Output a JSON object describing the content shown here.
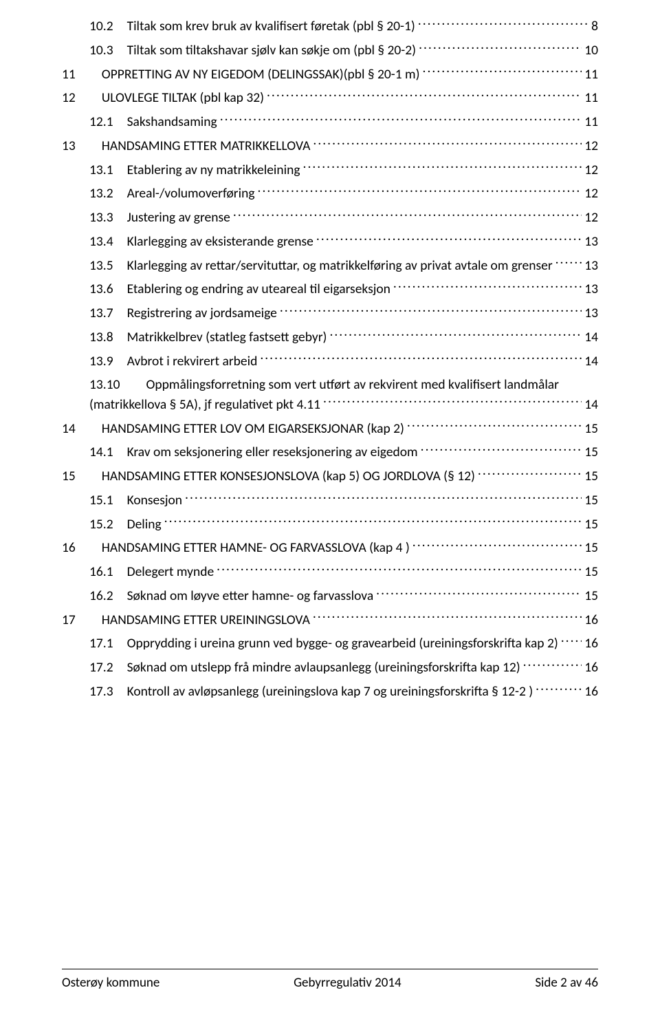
{
  "colors": {
    "text": "#000000",
    "background": "#ffffff",
    "footer_border": "#000000"
  },
  "typography": {
    "body_fontsize_pt": 11,
    "footer_fontsize_pt": 11,
    "font_family": "Calibri"
  },
  "toc": {
    "entries": [
      {
        "num": "10.2",
        "title": "Tiltak som krev bruk av kvalifisert føretak (pbl § 20-1)",
        "page": "8",
        "indent": 1,
        "gap": "narrow"
      },
      {
        "num": "10.3",
        "title": "Tiltak som tiltakshavar sjølv kan søkje om (pbl § 20-2)",
        "page": "10",
        "indent": 1,
        "gap": "narrow"
      },
      {
        "num": "11",
        "title": "OPPRETTING AV NY EIGEDOM (DELINGSSAK)(pbl § 20-1 m)",
        "page": "11",
        "indent": 0,
        "gap": "wide"
      },
      {
        "num": "12",
        "title": "ULOVLEGE TILTAK (pbl kap 32)",
        "page": "11",
        "indent": 0,
        "gap": "wide"
      },
      {
        "num": "12.1",
        "title": "Sakshandsaming",
        "page": "11",
        "indent": 1,
        "gap": "narrow"
      },
      {
        "num": "13",
        "title": "HANDSAMING ETTER MATRIKKELLOVA",
        "page": "12",
        "indent": 0,
        "gap": "wide"
      },
      {
        "num": "13.1",
        "title": "Etablering av ny matrikkeleining",
        "page": "12",
        "indent": 1,
        "gap": "narrow"
      },
      {
        "num": "13.2",
        "title": "Areal-/volumoverføring",
        "page": "12",
        "indent": 1,
        "gap": "narrow"
      },
      {
        "num": "13.3",
        "title": "Justering av grense",
        "page": "12",
        "indent": 1,
        "gap": "narrow"
      },
      {
        "num": "13.4",
        "title": "Klarlegging av eksisterande grense",
        "page": "13",
        "indent": 1,
        "gap": "narrow"
      },
      {
        "num": "13.5",
        "title": "Klarlegging av rettar/servituttar, og matrikkelføring av privat avtale om grenser",
        "page": "13",
        "indent": 1,
        "gap": "narrow"
      },
      {
        "num": "13.6",
        "title": "Etablering og endring av uteareal til eigarseksjon",
        "page": "13",
        "indent": 1,
        "gap": "narrow"
      },
      {
        "num": "13.7",
        "title": "Registrering av jordsameige",
        "page": "13",
        "indent": 1,
        "gap": "narrow"
      },
      {
        "num": "13.8",
        "title": "Matrikkelbrev (statleg fastsett gebyr)",
        "page": "14",
        "indent": 1,
        "gap": "narrow"
      },
      {
        "num": "13.9",
        "title": "Avbrot i rekvirert arbeid",
        "page": "14",
        "indent": 1,
        "gap": "narrow"
      }
    ],
    "multiline_entry": {
      "num": "13.10",
      "line1": "Oppmålingsforretning som vert utført av rekvirent med kvalifisert landmålar",
      "line2": "(matrikkellova § 5A), jf regulativet pkt 4.11",
      "page": "14"
    },
    "entries_after": [
      {
        "num": "14",
        "title": "HANDSAMING ETTER LOV OM EIGARSEKSJONAR (kap 2)",
        "page": "15",
        "indent": 0,
        "gap": "wide"
      },
      {
        "num": "14.1",
        "title": "Krav om seksjonering eller reseksjonering av eigedom",
        "page": "15",
        "indent": 1,
        "gap": "narrow"
      },
      {
        "num": "15",
        "title": "HANDSAMING ETTER KONSESJONSLOVA (kap 5) OG JORDLOVA (§ 12)",
        "page": "15",
        "indent": 0,
        "gap": "wide"
      },
      {
        "num": "15.1",
        "title": "Konsesjon",
        "page": "15",
        "indent": 1,
        "gap": "narrow"
      },
      {
        "num": "15.2",
        "title": "Deling",
        "page": "15",
        "indent": 1,
        "gap": "narrow"
      },
      {
        "num": "16",
        "title": "HANDSAMING ETTER HAMNE- OG FARVASSLOVA (kap 4 )",
        "page": "15",
        "indent": 0,
        "gap": "wide"
      },
      {
        "num": "16.1",
        "title": "Delegert mynde",
        "page": "15",
        "indent": 1,
        "gap": "narrow"
      },
      {
        "num": "16.2",
        "title": "Søknad om løyve etter hamne- og farvasslova",
        "page": "15",
        "indent": 1,
        "gap": "narrow"
      },
      {
        "num": "17",
        "title": "HANDSAMING ETTER UREININGSLOVA",
        "page": "16",
        "indent": 0,
        "gap": "wide"
      },
      {
        "num": "17.1",
        "title": "Opprydding i ureina grunn ved bygge- og gravearbeid (ureiningsforskrifta kap 2)",
        "page": "16",
        "indent": 1,
        "gap": "narrow"
      },
      {
        "num": "17.2",
        "title": "Søknad om utslepp frå mindre avlaupsanlegg (ureiningsforskrifta kap 12)",
        "page": "16",
        "indent": 1,
        "gap": "narrow"
      },
      {
        "num": "17.3",
        "title": "Kontroll av avløpsanlegg (ureiningslova kap 7 og ureiningsforskrifta § 12-2 )",
        "page": "16",
        "indent": 1,
        "gap": "narrow"
      }
    ]
  },
  "footer": {
    "left": "Osterøy kommune",
    "center": "Gebyrregulativ 2014",
    "right": "Side 2 av 46"
  }
}
